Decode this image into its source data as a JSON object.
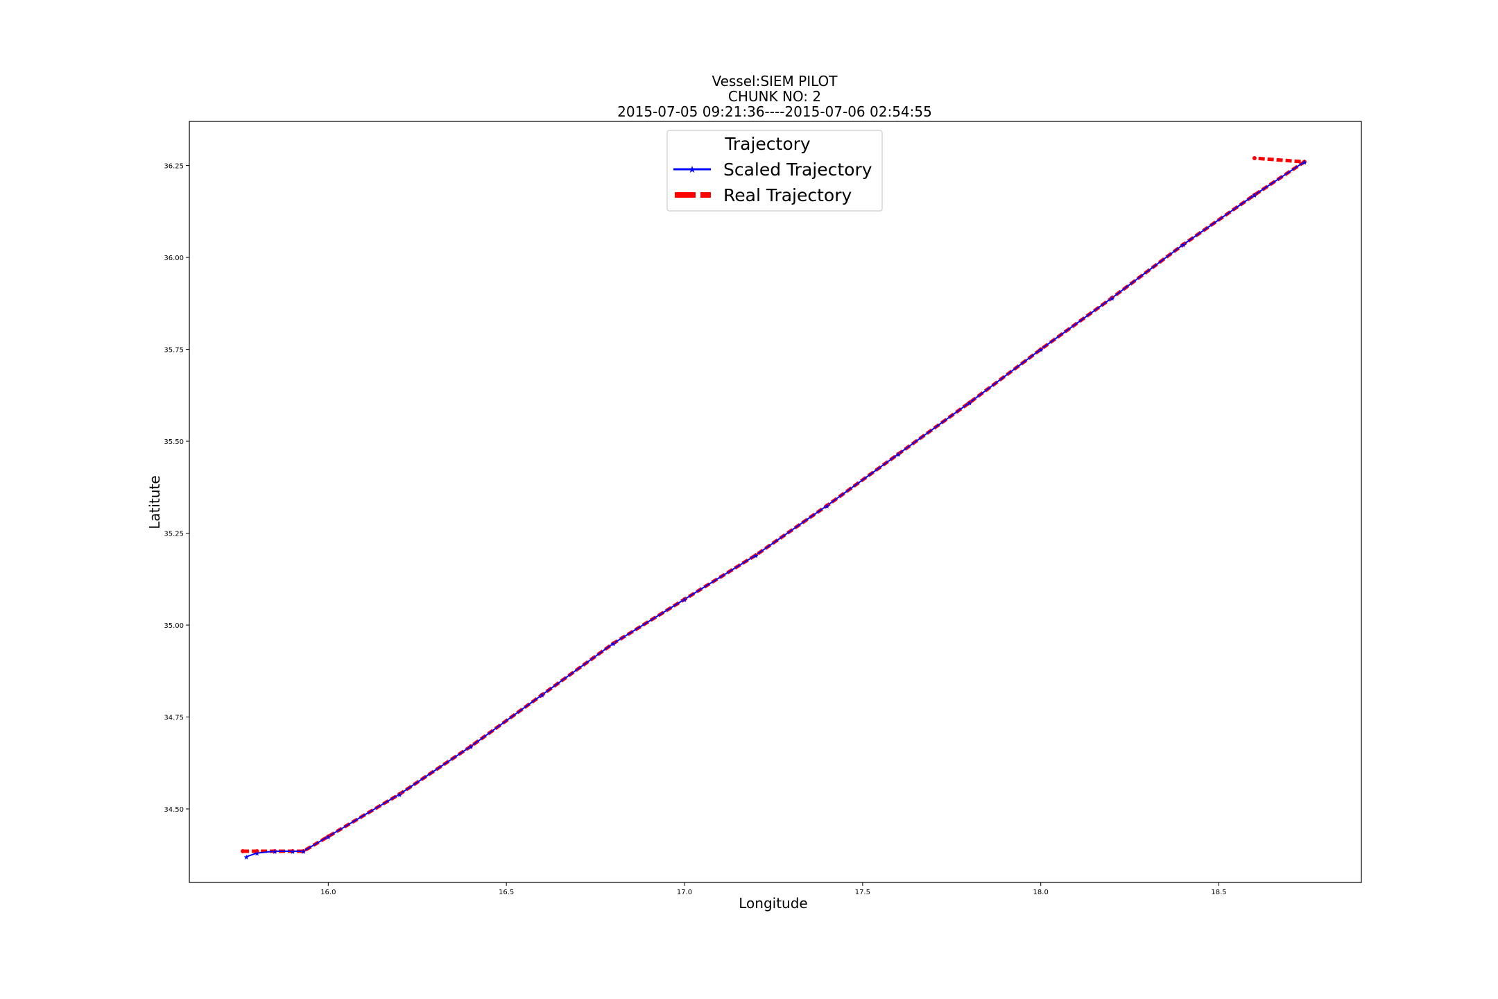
{
  "chart_data": {
    "type": "line",
    "title_lines": [
      "Vessel:SIEM PILOT",
      "CHUNK NO: 2",
      "2015-07-05 09:21:36----2015-07-06 02:54:55"
    ],
    "xlabel": "Longitude",
    "ylabel": "Latitute",
    "xlim": [
      15.61,
      18.9
    ],
    "ylim": [
      34.3,
      36.37
    ],
    "xticks": [
      16.0,
      16.5,
      17.0,
      17.5,
      18.0,
      18.5
    ],
    "xtick_labels": [
      "16.0",
      "16.5",
      "17.0",
      "17.5",
      "18.0",
      "18.5"
    ],
    "yticks": [
      34.5,
      34.75,
      35.0,
      35.25,
      35.5,
      35.75,
      36.0,
      36.25
    ],
    "ytick_labels": [
      "34.50",
      "34.75",
      "35.00",
      "35.25",
      "35.50",
      "35.75",
      "36.00",
      "36.25"
    ],
    "grid": false,
    "legend": {
      "title": "Trajectory",
      "placement": "upper center",
      "entries": [
        "Scaled Trajectory",
        "Real Trajectory"
      ]
    },
    "series": [
      {
        "name": "Scaled Trajectory",
        "color": "#0000ff",
        "style": "solid-line-star-markers",
        "x": [
          15.77,
          15.8,
          15.85,
          15.9,
          15.93,
          16.0,
          16.2,
          16.4,
          16.6,
          16.8,
          17.0,
          17.2,
          17.4,
          17.6,
          17.8,
          18.0,
          18.2,
          18.4,
          18.6,
          18.74
        ],
        "y": [
          34.37,
          34.38,
          34.385,
          34.385,
          34.385,
          34.425,
          34.54,
          34.67,
          34.81,
          34.95,
          35.07,
          35.19,
          35.325,
          35.465,
          35.605,
          35.75,
          35.89,
          36.035,
          36.17,
          36.26
        ]
      },
      {
        "name": "Real Trajectory",
        "color": "#ff0000",
        "style": "thick-dashed",
        "x": [
          15.76,
          15.8,
          15.85,
          15.9,
          15.93,
          16.0,
          16.2,
          16.4,
          16.6,
          16.8,
          17.0,
          17.2,
          17.4,
          17.6,
          17.8,
          18.0,
          18.2,
          18.4,
          18.6,
          18.74,
          18.6
        ],
        "y": [
          34.385,
          34.385,
          34.385,
          34.385,
          34.385,
          34.425,
          34.54,
          34.67,
          34.81,
          34.95,
          35.07,
          35.19,
          35.325,
          35.465,
          35.605,
          35.75,
          35.89,
          36.035,
          36.17,
          36.26,
          36.27
        ]
      }
    ]
  }
}
